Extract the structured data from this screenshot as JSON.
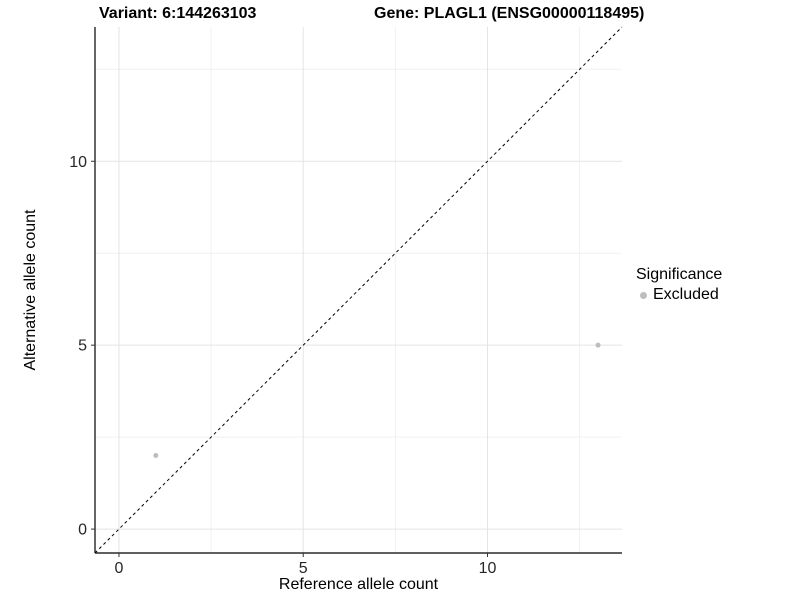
{
  "titles": {
    "variant": "Variant: 6:144263103",
    "gene": "Gene: PLAGL1 (ENSG00000118495)"
  },
  "chart_data": {
    "type": "scatter",
    "title_left": "Variant: 6:144263103",
    "title_right": "Gene: PLAGL1 (ENSG00000118495)",
    "xlabel": "Reference allele count",
    "ylabel": "Alternative allele count",
    "xlim": [
      -0.65,
      13.65
    ],
    "ylim": [
      -0.65,
      13.65
    ],
    "xticks": [
      0,
      5,
      10
    ],
    "yticks": [
      0,
      5,
      10
    ],
    "xticks_minor": [
      2.5,
      7.5,
      12.5
    ],
    "yticks_minor": [
      2.5,
      7.5,
      12.5
    ],
    "grid": true,
    "identity_line": {
      "style": "dashed",
      "intercept": 0,
      "slope": 1,
      "color": "#000000"
    },
    "series": [
      {
        "name": "Excluded",
        "color": "#bdbdbd",
        "point_radius": 2.5,
        "points": [
          {
            "x": 1,
            "y": 2
          },
          {
            "x": 13,
            "y": 5
          }
        ]
      }
    ],
    "legend": {
      "title": "Significance",
      "position": "right",
      "entries": [
        {
          "label": "Excluded",
          "color": "#bdbdbd"
        }
      ]
    },
    "colors": {
      "background": "#ffffff",
      "axis_line": "#000000",
      "tick_mark": "#333333",
      "tick_label": "#262626",
      "grid_major": "#e4e4e4",
      "grid_minor": "#f1f1f1"
    }
  }
}
